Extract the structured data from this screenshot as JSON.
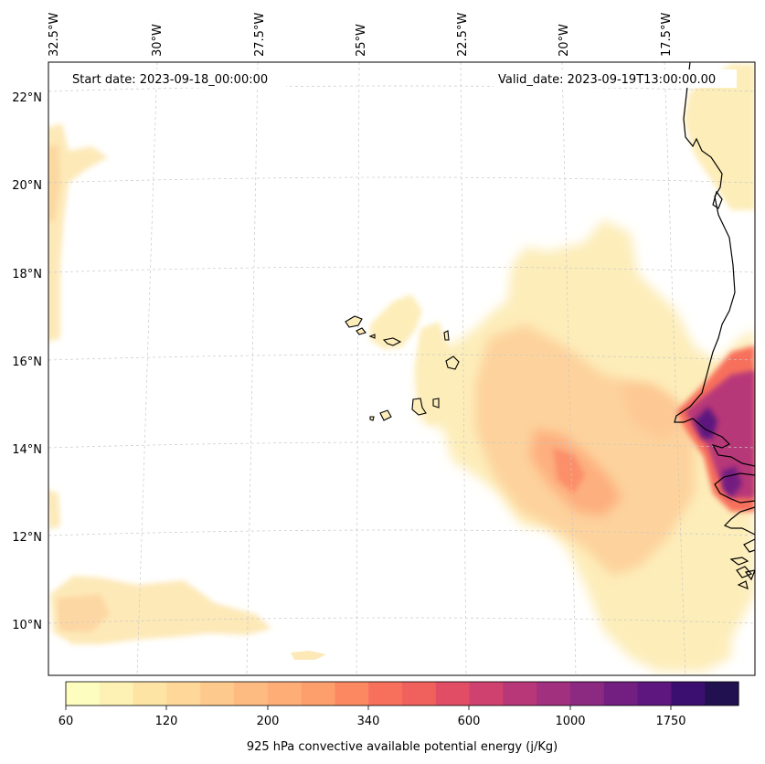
{
  "map": {
    "start_date": "Start date: 2023-09-18_00:00:00",
    "valid_date": "Valid_date: 2023-09-19T13:00:00.00",
    "lon_labels": [
      "32.5°W",
      "30°W",
      "27.5°W",
      "25°W",
      "22.5°W",
      "20°W",
      "17.5°W"
    ],
    "lat_labels": [
      "22°N",
      "20°N",
      "18°N",
      "16°N",
      "14°N",
      "12°N",
      "10°N"
    ],
    "extent": {
      "lon_min": -32.5,
      "lon_max": -16.0,
      "lat_min": 8.9,
      "lat_max": 22.8
    },
    "variable": "925 hPa convective available potential energy"
  },
  "colorbar": {
    "label": "925 hPa convective available potential energy (j/Kg)",
    "tick_labels": [
      "60",
      "120",
      "200",
      "340",
      "600",
      "1000",
      "1750"
    ],
    "levels": [
      60,
      80,
      100,
      120,
      140,
      170,
      200,
      240,
      290,
      340,
      400,
      480,
      600,
      700,
      850,
      1000,
      1200,
      1450,
      1750,
      2100,
      2500
    ],
    "colors": [
      "#fcfdbf",
      "#fdf2b3",
      "#fde4a5",
      "#fed799",
      "#fec98d",
      "#febb81",
      "#fead77",
      "#fd9f6c",
      "#fb8861",
      "#f7705c",
      "#f0605d",
      "#e24d66",
      "#cf426f",
      "#b73779",
      "#a1307e",
      "#8c2981",
      "#721f81",
      "#5d177f",
      "#3b0f70",
      "#221150"
    ]
  },
  "colors": {
    "coast": "#000000",
    "grid": "#c8c8c8",
    "frame": "#000000"
  }
}
